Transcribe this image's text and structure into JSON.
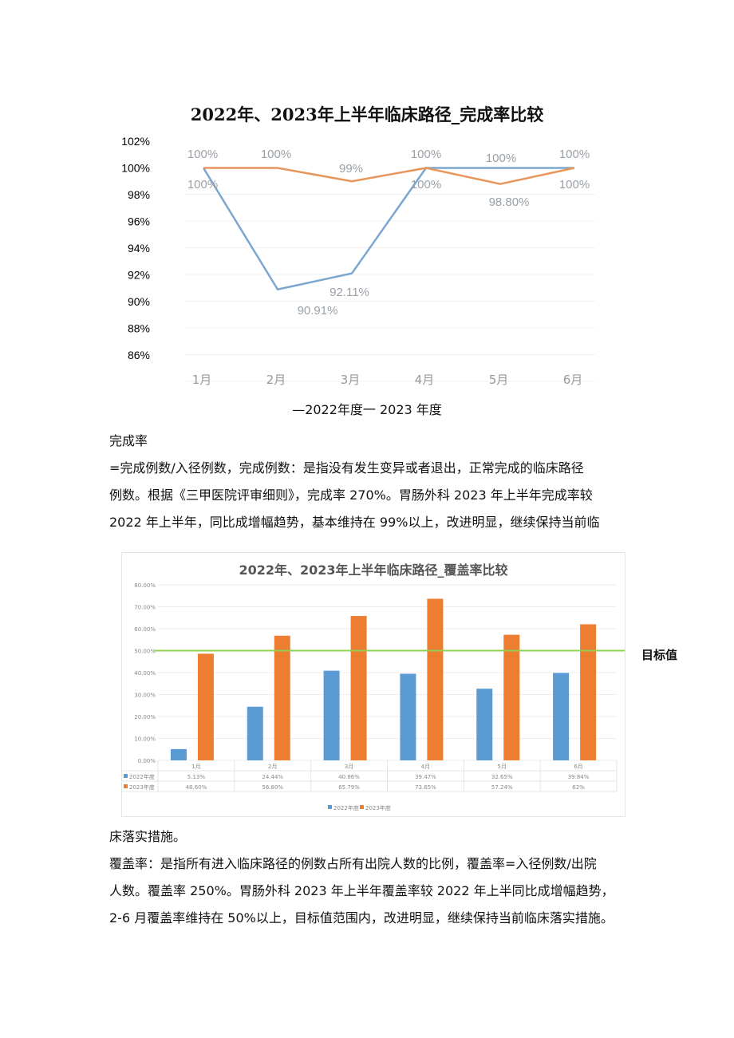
{
  "chart_data": [
    {
      "type": "line",
      "title": "2022年、2023年上半年临床路径_完成率比较",
      "categories": [
        "1月",
        "2月",
        "3月",
        "4月",
        "5月",
        "6月"
      ],
      "series": [
        {
          "name": "2022年度",
          "color": "#7ba7cf",
          "values": [
            100,
            90.91,
            92.11,
            100,
            100,
            100
          ],
          "labels": [
            "100%",
            "90.91%",
            "92.11%",
            "100%",
            "100%",
            "100%"
          ]
        },
        {
          "name": "2023年度",
          "color": "#e8955a",
          "values": [
            100,
            100,
            99,
            100,
            98.8,
            100
          ],
          "labels": [
            "100%",
            "100%",
            "99%",
            "100%",
            "98.80%",
            "100%"
          ]
        }
      ],
      "yticks": [
        "102%",
        "100%",
        "98%",
        "96%",
        "94%",
        "92%",
        "90%",
        "88%",
        "86%"
      ],
      "ylim": [
        86,
        102
      ],
      "legend": "—2022年度一 2023 年度",
      "grid": true
    },
    {
      "type": "bar",
      "title": "2022年、2023年上半年临床路径_覆盖率比较",
      "categories": [
        "1月",
        "2月",
        "3月",
        "4月",
        "5月",
        "6月"
      ],
      "series": [
        {
          "name": "2022年度",
          "color": "#5b9bd5",
          "values": [
            5.13,
            24.44,
            40.86,
            39.47,
            32.65,
            39.84
          ],
          "labels": [
            "5.13%",
            "24.44%",
            "40.86%",
            "39.47%",
            "32.65%",
            "39.84%"
          ]
        },
        {
          "name": "2023年度",
          "color": "#ed7d31",
          "values": [
            48.6,
            56.8,
            65.79,
            73.65,
            57.24,
            62
          ],
          "labels": [
            "48.60%",
            "56.80%",
            "65.79%",
            "73.65%",
            "57.24%",
            "62%"
          ]
        }
      ],
      "yticks": [
        "80.00%",
        "70.00%",
        "60.00%",
        "50.00%",
        "40.00%",
        "30.00%",
        "20.00%",
        "10.00%",
        "0.00%"
      ],
      "ylim": [
        0,
        80
      ],
      "target_line": {
        "value": 50,
        "color": "#92d050",
        "label": "目标值"
      },
      "grid": true
    }
  ],
  "text": {
    "p1_label": "完成率",
    "p1_l1": "=完成例数/入径例数，完成例数：是指没有发生变异或者退出，正常完成的临床路径",
    "p1_l2": "例数。根据《三甲医院评审细则》，完成率 270%。胃肠外科 2023 年上半年完成率较",
    "p1_l3": "2022 年上半年，同比成增幅趋势，基本维持在 99%以上，改进明显，继续保持当前临",
    "p2_l0": "床落实措施。",
    "p2_l1": "覆盖率：是指所有进入临床路径的例数占所有出院人数的比例，覆盖率=入径例数/出院",
    "p2_l2": "人数。覆盖率 250%。胃肠外科 2023 年上半年覆盖率较 2022 年上半同比成增幅趋势，",
    "p2_l3": "2-6 月覆盖率维持在 50%以上，目标值范围内，改进明显，继续保持当前临床落实措施。"
  }
}
